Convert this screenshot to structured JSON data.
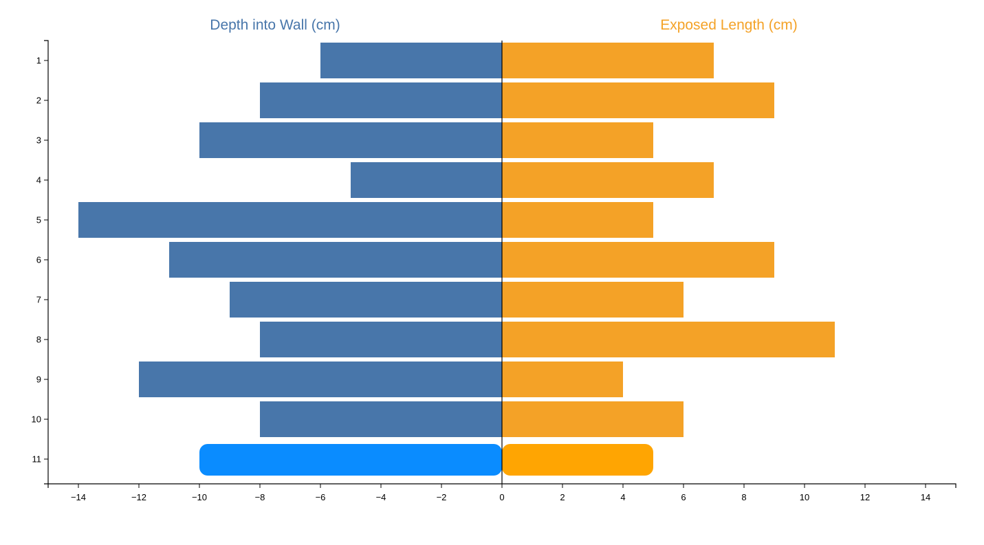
{
  "chart_data": {
    "type": "bar",
    "orientation": "horizontal-diverging",
    "categories": [
      "1",
      "2",
      "3",
      "4",
      "5",
      "6",
      "7",
      "8",
      "9",
      "10",
      "11"
    ],
    "series": [
      {
        "name": "Depth into Wall (cm)",
        "color": "#4876aa",
        "values": [
          -6,
          -8,
          -10,
          -5,
          -14,
          -11,
          -9,
          -8,
          -12,
          -8,
          -10
        ]
      },
      {
        "name": "Exposed Length (cm)",
        "color": "#f4a227",
        "values": [
          7,
          9,
          5,
          7,
          5,
          9,
          6,
          11,
          4,
          6,
          5
        ]
      }
    ],
    "highlighted_category": "11",
    "highlight_colors": {
      "left": "#0a8cff",
      "right": "#ffa502"
    },
    "xlim": [
      -15,
      15
    ],
    "x_ticks": [
      -14,
      -12,
      -10,
      -8,
      -6,
      -4,
      -2,
      0,
      2,
      4,
      6,
      8,
      10,
      12,
      14
    ],
    "x_tick_labels": [
      "−14",
      "−12",
      "−10",
      "−8",
      "−6",
      "−4",
      "−2",
      "0",
      "2",
      "4",
      "6",
      "8",
      "10",
      "12",
      "14"
    ],
    "grid": false
  }
}
